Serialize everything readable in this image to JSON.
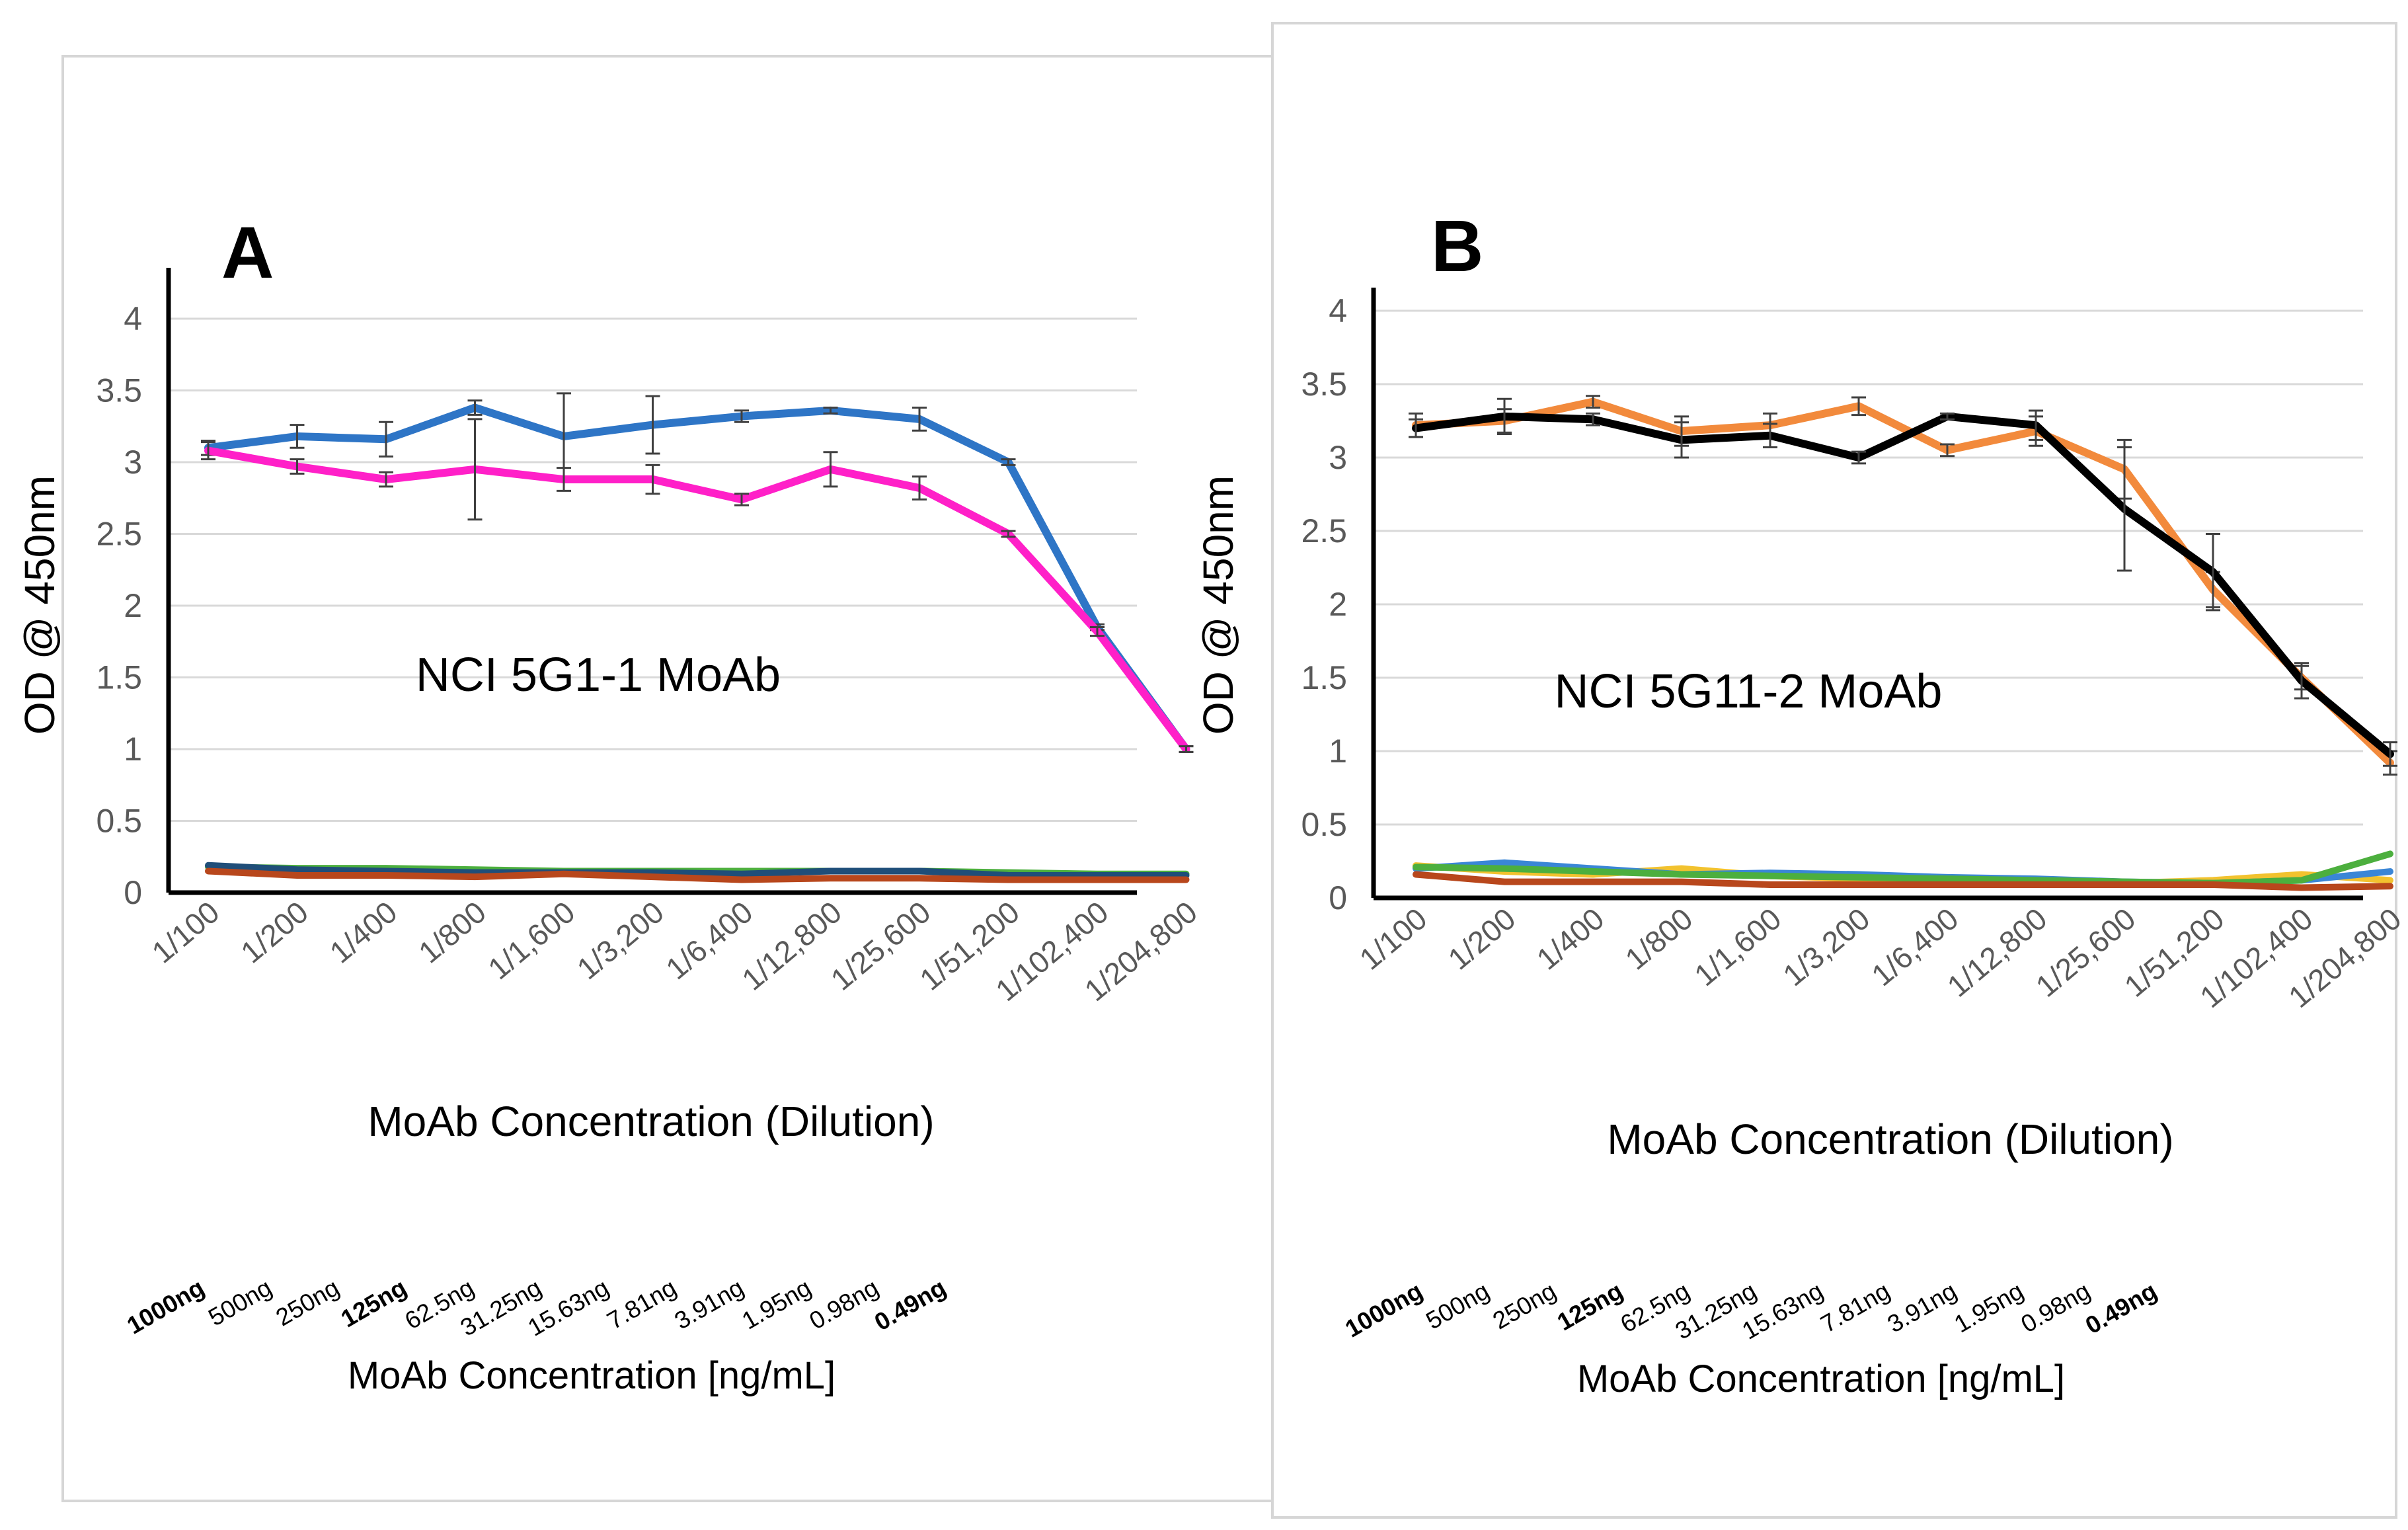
{
  "chart_data": [
    {
      "type": "line",
      "panel_letter": "A",
      "annotation": "NCI 5G1-1 MoAb",
      "ylabel": "OD @ 450nm",
      "xlabel": "MoAb Concentration (Dilution)",
      "ylim": [
        0,
        4
      ],
      "yticks": [
        "0",
        "0.5",
        "1",
        "1.5",
        "2",
        "2.5",
        "3",
        "3.5",
        "4"
      ],
      "grid": true,
      "categories": [
        "1/100",
        "1/200",
        "1/400",
        "1/800",
        "1/1,600",
        "1/3,200",
        "1/6,400",
        "1/12,800",
        "1/25,600",
        "1/51,200",
        "1/102,400",
        "1/204,800"
      ],
      "concentrations": [
        "1000ng",
        "500ng",
        "250ng",
        "125ng",
        "62.5ng",
        "31.25ng",
        "15.63ng",
        "7.81ng",
        "3.91ng",
        "1.95ng",
        "0.98ng",
        "0.49ng"
      ],
      "concentration_label": "MoAb Concentration [ng/mL]",
      "series": [
        {
          "name": "blue",
          "color": "#2e75c6",
          "values": [
            3.1,
            3.18,
            3.16,
            3.38,
            3.18,
            3.26,
            3.32,
            3.36,
            3.3,
            3.0,
            1.85,
            1.0
          ],
          "errors": [
            0.05,
            0.08,
            0.12,
            0.05,
            0.3,
            0.2,
            0.04,
            0.02,
            0.08,
            0.02,
            0.02,
            0.02
          ]
        },
        {
          "name": "magenta",
          "color": "#ff20c8",
          "values": [
            3.08,
            2.97,
            2.88,
            2.95,
            2.88,
            2.88,
            2.74,
            2.95,
            2.82,
            2.5,
            1.82,
            1.0
          ],
          "errors": [
            0.06,
            0.05,
            0.05,
            0.35,
            0.08,
            0.1,
            0.04,
            0.12,
            0.08,
            0.02,
            0.03,
            0.02
          ]
        },
        {
          "name": "green",
          "color": "#4caf3e",
          "values": [
            0.18,
            0.17,
            0.17,
            0.16,
            0.15,
            0.15,
            0.15,
            0.15,
            0.15,
            0.14,
            0.13,
            0.13
          ],
          "errors": []
        },
        {
          "name": "navy",
          "color": "#1f4e79",
          "values": [
            0.19,
            0.16,
            0.15,
            0.14,
            0.14,
            0.14,
            0.13,
            0.15,
            0.15,
            0.12,
            0.12,
            0.12
          ],
          "errors": []
        },
        {
          "name": "brown",
          "color": "#b8471c",
          "values": [
            0.15,
            0.12,
            0.12,
            0.11,
            0.13,
            0.11,
            0.09,
            0.1,
            0.1,
            0.09,
            0.09,
            0.09
          ],
          "errors": []
        }
      ]
    },
    {
      "type": "line",
      "panel_letter": "B",
      "annotation": "NCI 5G11-2 MoAb",
      "ylabel": "OD @ 450nm",
      "xlabel": "MoAb Concentration (Dilution)",
      "ylim": [
        0,
        4
      ],
      "yticks": [
        "0",
        "0.5",
        "1",
        "1.5",
        "2",
        "2.5",
        "3",
        "3.5",
        "4"
      ],
      "grid": true,
      "categories": [
        "1/100",
        "1/200",
        "1/400",
        "1/800",
        "1/1,600",
        "1/3,200",
        "1/6,400",
        "1/12,800",
        "1/25,600",
        "1/51,200",
        "1/102,400",
        "1/204,800"
      ],
      "concentrations": [
        "1000ng",
        "500ng",
        "250ng",
        "125ng",
        "62.5ng",
        "31.25ng",
        "15.63ng",
        "7.81ng",
        "3.91ng",
        "1.95ng",
        "0.98ng",
        "0.49ng"
      ],
      "concentration_label": "MoAb Concentration [ng/mL]",
      "series": [
        {
          "name": "orange",
          "color": "#f28a3c",
          "values": [
            3.22,
            3.25,
            3.38,
            3.18,
            3.22,
            3.35,
            3.05,
            3.18,
            2.92,
            2.1,
            1.5,
            0.92
          ],
          "errors": [
            0.08,
            0.08,
            0.04,
            0.1,
            0.08,
            0.06,
            0.04,
            0.1,
            0.2,
            0.12,
            0.08,
            0.08
          ]
        },
        {
          "name": "black",
          "color": "#000000",
          "values": [
            3.2,
            3.28,
            3.26,
            3.12,
            3.15,
            3.0,
            3.28,
            3.22,
            2.65,
            2.22,
            1.48,
            0.98
          ],
          "errors": [
            0.06,
            0.12,
            0.04,
            0.12,
            0.08,
            0.04,
            0.02,
            0.1,
            0.42,
            0.26,
            0.12,
            0.08
          ]
        },
        {
          "name": "gold",
          "color": "#f2c22e",
          "values": [
            0.22,
            0.18,
            0.16,
            0.2,
            0.15,
            0.13,
            0.12,
            0.11,
            0.1,
            0.12,
            0.16,
            0.12
          ],
          "errors": []
        },
        {
          "name": "blue",
          "color": "#3a86d6",
          "values": [
            0.2,
            0.24,
            0.2,
            0.16,
            0.17,
            0.16,
            0.14,
            0.13,
            0.11,
            0.1,
            0.12,
            0.18
          ],
          "errors": []
        },
        {
          "name": "green",
          "color": "#4caf3e",
          "values": [
            0.21,
            0.2,
            0.18,
            0.16,
            0.15,
            0.14,
            0.13,
            0.12,
            0.11,
            0.1,
            0.12,
            0.3
          ],
          "errors": []
        },
        {
          "name": "brown",
          "color": "#b8471c",
          "values": [
            0.16,
            0.11,
            0.11,
            0.11,
            0.09,
            0.09,
            0.09,
            0.09,
            0.09,
            0.09,
            0.07,
            0.08
          ],
          "errors": []
        }
      ]
    }
  ]
}
